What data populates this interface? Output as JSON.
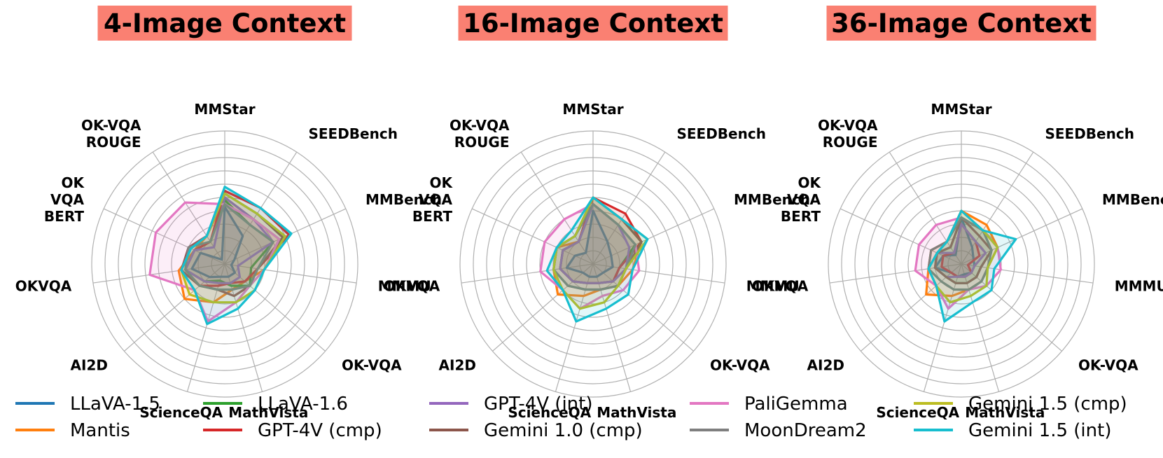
{
  "chart_data": [
    {
      "type": "radar",
      "title": "4-Image Context",
      "title_bg": "#fa8072",
      "axes": [
        "MMStar",
        "SEEDBench",
        "MMBench",
        "MMMU",
        "OK-VQA",
        "MathVista",
        "ScienceQA",
        "AI2D",
        "OKVQA",
        "OK VQA BERT",
        "OK-VQA ROUGE"
      ],
      "rlim": [
        0,
        10
      ],
      "grid": true,
      "series": [
        {
          "name": "LLaVA-1.5",
          "values": [
            4.3,
            2.5,
            0.8,
            0.5,
            1.0,
            1.0,
            1.0,
            1.5,
            2.5,
            2.0,
            0.4
          ]
        },
        {
          "name": "Mantis",
          "values": [
            5.0,
            4.0,
            4.5,
            3.0,
            2.0,
            2.0,
            3.0,
            4.0,
            3.5,
            2.5,
            2.5
          ]
        },
        {
          "name": "LLaVA-1.6",
          "values": [
            4.8,
            3.5,
            4.0,
            2.0,
            2.5,
            1.7,
            1.3,
            2.0,
            3.0,
            2.5,
            2.0
          ]
        },
        {
          "name": "GPT-4V (cmp)",
          "values": [
            5.5,
            5.0,
            5.3,
            2.5,
            2.0,
            1.5,
            1.7,
            2.5,
            3.0,
            2.5,
            2.0
          ]
        },
        {
          "name": "GPT-4V (int)",
          "values": [
            5.0,
            4.0,
            4.0,
            1.0,
            1.5,
            1.5,
            1.5,
            2.0,
            3.0,
            2.5,
            1.5
          ]
        },
        {
          "name": "Gemini 1.0 (cmp)",
          "values": [
            5.3,
            4.5,
            4.8,
            2.5,
            2.5,
            2.5,
            2.0,
            2.5,
            3.3,
            3.0,
            2.5
          ]
        },
        {
          "name": "PaliGemma",
          "values": [
            4.5,
            4.0,
            4.5,
            3.0,
            2.5,
            3.0,
            4.5,
            3.0,
            5.7,
            5.7,
            5.5
          ]
        },
        {
          "name": "MoonDream2",
          "values": [
            4.5,
            3.5,
            4.0,
            2.5,
            2.5,
            2.0,
            2.0,
            2.5,
            3.0,
            3.0,
            2.0
          ]
        },
        {
          "name": "Gemini 1.5 (cmp)",
          "values": [
            5.3,
            4.5,
            5.0,
            3.0,
            3.0,
            3.0,
            3.0,
            3.5,
            3.3,
            2.8,
            2.5
          ]
        },
        {
          "name": "Gemini 1.5 (int)",
          "values": [
            5.8,
            5.0,
            5.5,
            3.0,
            3.0,
            3.5,
            4.7,
            3.0,
            3.3,
            2.8,
            2.5
          ]
        }
      ]
    },
    {
      "type": "radar",
      "title": "16-Image Context",
      "title_bg": "#fa8072",
      "axes": [
        "MMStar",
        "SEEDBench",
        "MMBench",
        "MMMU",
        "OK-VQA",
        "MathVista",
        "ScienceQA",
        "AI2D",
        "OKVQA",
        "OK VQA BERT",
        "OK-VQA ROUGE"
      ],
      "rlim": [
        0,
        10
      ],
      "grid": true,
      "series": [
        {
          "name": "LLaVA-1.5",
          "values": [
            4.0,
            2.0,
            1.5,
            1.5,
            1.0,
            1.0,
            1.0,
            1.0,
            2.0,
            1.5,
            1.0
          ]
        },
        {
          "name": "Mantis",
          "values": [
            5.0,
            4.0,
            4.0,
            3.0,
            2.5,
            2.0,
            2.5,
            3.5,
            3.0,
            3.0,
            2.0
          ]
        },
        {
          "name": "LLaVA-1.6",
          "values": [
            4.5,
            3.5,
            3.5,
            2.0,
            2.0,
            1.5,
            1.5,
            2.0,
            2.5,
            2.5,
            2.0
          ]
        },
        {
          "name": "GPT-4V (cmp)",
          "values": [
            5.0,
            4.5,
            4.0,
            2.0,
            2.0,
            1.5,
            1.5,
            2.0,
            2.5,
            2.5,
            2.0
          ]
        },
        {
          "name": "GPT-4V (int)",
          "values": [
            4.5,
            3.5,
            3.0,
            2.5,
            2.0,
            1.5,
            1.5,
            2.0,
            2.5,
            2.5,
            2.0
          ]
        },
        {
          "name": "Gemini 1.0 (cmp)",
          "values": [
            5.0,
            4.0,
            4.0,
            2.5,
            2.5,
            2.0,
            2.0,
            2.5,
            3.0,
            3.0,
            2.5
          ]
        },
        {
          "name": "PaliGemma",
          "values": [
            4.5,
            3.5,
            3.5,
            3.5,
            3.0,
            2.5,
            3.5,
            3.0,
            4.0,
            4.0,
            4.0
          ]
        },
        {
          "name": "MoonDream2",
          "values": [
            4.5,
            3.5,
            3.5,
            2.5,
            2.5,
            2.0,
            2.0,
            2.5,
            3.0,
            3.0,
            2.5
          ]
        },
        {
          "name": "Gemini 1.5 (cmp)",
          "values": [
            5.0,
            4.0,
            4.5,
            2.5,
            2.5,
            3.0,
            3.5,
            3.0,
            3.0,
            3.0,
            2.5
          ]
        },
        {
          "name": "Gemini 1.5 (int)",
          "values": [
            5.0,
            4.0,
            4.5,
            3.0,
            3.5,
            3.5,
            4.5,
            3.0,
            3.5,
            3.0,
            3.0
          ]
        }
      ]
    },
    {
      "type": "radar",
      "title": "36-Image Context",
      "title_bg": "#fa8072",
      "axes": [
        "MMStar",
        "SEEDBench",
        "MMBench",
        "MMMU",
        "OK-VQA",
        "MathVista",
        "ScienceQA",
        "AI2D",
        "OKVQA",
        "OK VQA BERT",
        "OK-VQA ROUGE"
      ],
      "rlim": [
        0,
        10
      ],
      "grid": true,
      "series": [
        {
          "name": "LLaVA-1.5",
          "values": [
            3.5,
            1.5,
            1.0,
            1.0,
            1.0,
            0.8,
            1.0,
            1.0,
            2.0,
            1.5,
            0.8
          ]
        },
        {
          "name": "Mantis",
          "values": [
            4.0,
            3.5,
            3.0,
            2.0,
            2.0,
            2.0,
            2.5,
            3.5,
            2.5,
            2.5,
            2.0
          ]
        },
        {
          "name": "LLaVA-1.6",
          "values": [
            3.5,
            3.0,
            2.5,
            1.5,
            1.5,
            1.5,
            1.5,
            1.5,
            2.0,
            2.0,
            1.5
          ]
        },
        {
          "name": "GPT-4V (cmp)",
          "values": [
            3.0,
            2.0,
            1.5,
            0.5,
            1.0,
            1.0,
            1.0,
            1.0,
            1.5,
            1.5,
            1.0
          ]
        },
        {
          "name": "GPT-4V (int)",
          "values": [
            3.0,
            2.0,
            2.0,
            1.0,
            1.0,
            1.0,
            1.0,
            1.5,
            2.0,
            2.0,
            1.0
          ]
        },
        {
          "name": "Gemini 1.0 (cmp)",
          "values": [
            3.5,
            2.5,
            2.5,
            1.5,
            1.5,
            1.5,
            1.5,
            1.5,
            2.0,
            2.0,
            1.5
          ]
        },
        {
          "name": "PaliGemma",
          "values": [
            3.5,
            3.0,
            3.0,
            3.0,
            2.5,
            2.0,
            3.5,
            2.5,
            3.5,
            3.5,
            3.5
          ]
        },
        {
          "name": "MoonDream2",
          "values": [
            3.5,
            3.0,
            2.5,
            2.0,
            2.0,
            2.0,
            2.0,
            2.0,
            2.5,
            2.5,
            2.0
          ]
        },
        {
          "name": "Gemini 1.5 (cmp)",
          "values": [
            4.0,
            3.0,
            3.0,
            2.0,
            2.5,
            2.5,
            3.0,
            2.5,
            2.5,
            2.0,
            2.0
          ]
        },
        {
          "name": "Gemini 1.5 (int)",
          "values": [
            4.0,
            3.0,
            4.5,
            2.5,
            3.0,
            3.0,
            4.5,
            2.5,
            2.5,
            2.0,
            2.0
          ]
        }
      ]
    }
  ],
  "legend": {
    "placement": "bottom",
    "items": [
      {
        "name": "LLaVA-1.5",
        "color": "#1f77b4"
      },
      {
        "name": "Mantis",
        "color": "#ff7f0e"
      },
      {
        "name": "LLaVA-1.6",
        "color": "#2ca02c"
      },
      {
        "name": "GPT-4V (cmp)",
        "color": "#d62728"
      },
      {
        "name": "GPT-4V (int)",
        "color": "#9467bd"
      },
      {
        "name": "Gemini 1.0 (cmp)",
        "color": "#8c564b"
      },
      {
        "name": "PaliGemma",
        "color": "#e377c2"
      },
      {
        "name": "MoonDream2",
        "color": "#7f7f7f"
      },
      {
        "name": "Gemini 1.5 (cmp)",
        "color": "#bcbd22"
      },
      {
        "name": "Gemini 1.5 (int)",
        "color": "#17becf"
      }
    ]
  }
}
